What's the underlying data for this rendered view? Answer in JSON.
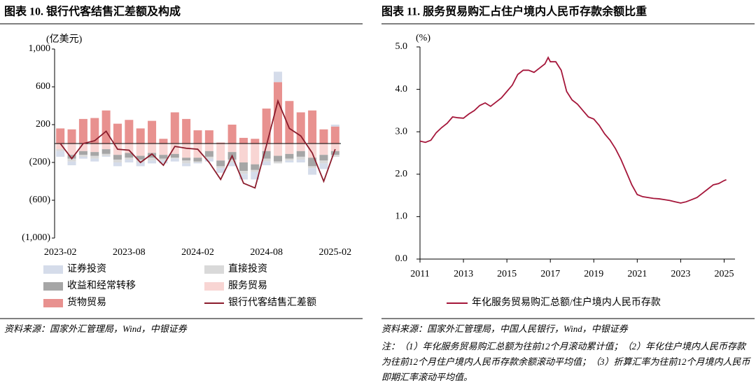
{
  "chart_data": [
    {
      "type": "bar",
      "title": "图表 10. 银行代客结售汇差额及构成",
      "y_unit": "(亿美元)",
      "source": "资料来源：国家外汇管理局，Wind，中银证券",
      "categories": [
        "2023-02",
        null,
        null,
        null,
        null,
        null,
        "2023-08",
        null,
        null,
        null,
        null,
        null,
        "2024-02",
        null,
        null,
        null,
        null,
        null,
        "2024-08",
        null,
        null,
        null,
        null,
        null,
        "2025-02"
      ],
      "ylim": [
        -1000,
        1000
      ],
      "yticks": [
        {
          "value": 1000,
          "label": "1,000"
        },
        600,
        200,
        {
          "value": -200,
          "label": "(200)"
        },
        {
          "value": -600,
          "label": "(600)"
        },
        {
          "value": -1000,
          "label": "(1,000)"
        }
      ],
      "series": [
        {
          "name": "证券投资",
          "color": "#d5dcea",
          "values": [
            -60,
            -40,
            -20,
            -30,
            -10,
            -40,
            -30,
            -40,
            -30,
            -30,
            -30,
            -30,
            -10,
            -30,
            -50,
            -40,
            -60,
            -80,
            -40,
            110,
            -20,
            -30,
            -70,
            -60,
            20
          ]
        },
        {
          "name": "直接投资",
          "color": "#d9d9d9",
          "values": [
            -20,
            -30,
            -20,
            -30,
            -20,
            -30,
            -20,
            -30,
            -30,
            -20,
            -10,
            -30,
            -10,
            -20,
            -20,
            -30,
            -30,
            -20,
            -30,
            -20,
            -20,
            -30,
            -20,
            -30,
            -20
          ]
        },
        {
          "name": "收益和经常转移",
          "color": "#a6a6a6",
          "values": [
            0,
            -40,
            -40,
            -40,
            -50,
            -50,
            -50,
            -40,
            -50,
            -40,
            -40,
            -30,
            -40,
            -60,
            -60,
            -80,
            -90,
            -60,
            -80,
            -60,
            -50,
            -60,
            -90,
            -60,
            -40
          ]
        },
        {
          "name": "服务贸易",
          "color": "#f8d5d3",
          "values": [
            -60,
            -120,
            -80,
            -90,
            -60,
            -120,
            -100,
            -130,
            -100,
            -120,
            -110,
            -150,
            -150,
            -80,
            -180,
            -90,
            -200,
            -220,
            -80,
            -130,
            -110,
            -80,
            -150,
            -120,
            -80
          ]
        },
        {
          "name": "货物贸易",
          "color": "#e8918f",
          "values": [
            160,
            150,
            260,
            270,
            350,
            210,
            250,
            160,
            240,
            50,
            330,
            260,
            140,
            140,
            10,
            200,
            60,
            50,
            370,
            650,
            450,
            330,
            350,
            150,
            180
          ]
        },
        {
          "name": "银行代客结售汇差额",
          "color": "#8b1c2c",
          "type": "line",
          "values": [
            0,
            -160,
            0,
            30,
            130,
            -60,
            -70,
            -200,
            -110,
            -230,
            -30,
            -50,
            -60,
            -200,
            -380,
            -130,
            -420,
            -470,
            -20,
            450,
            160,
            80,
            -100,
            -400,
            -60
          ]
        }
      ]
    },
    {
      "type": "line",
      "title": "图表 11. 服务贸易购汇占住户境内人民币存款余额比重",
      "y_unit": "(%)",
      "source": "资料来源：国家外汇管理局，中国人民银行，Wind，中银证券",
      "note": "注：（1）年化服务贸易购汇总额为往前12个月滚动累计值；（2）年化住户境内人民币存款为往前12个月住户境内人民币存款余额滚动平均值；（3）折算汇率为往前12个月境内人民币即期汇率滚动平均值。",
      "xlim": [
        2011,
        2025.5
      ],
      "xticks": [
        2011,
        2013,
        2015,
        2017,
        2019,
        2021,
        2023,
        2025
      ],
      "ylim": [
        0,
        5
      ],
      "yticks": [
        {
          "value": 0,
          "label": "0.0"
        },
        {
          "value": 1,
          "label": "1.0"
        },
        {
          "value": 2,
          "label": "2.0"
        },
        {
          "value": 3,
          "label": "3.0"
        },
        {
          "value": 4,
          "label": "4.0"
        },
        {
          "value": 5,
          "label": "5.0"
        }
      ],
      "series": [
        {
          "name": "年化服务贸易购汇总额/住户境内人民币存款",
          "color": "#a5163a",
          "x": [
            2011,
            2011.25,
            2011.5,
            2011.75,
            2012,
            2012.25,
            2012.5,
            2012.75,
            2013,
            2013.25,
            2013.5,
            2013.75,
            2014,
            2014.25,
            2014.5,
            2014.75,
            2015,
            2015.25,
            2015.5,
            2015.75,
            2016,
            2016.25,
            2016.5,
            2016.75,
            2016.9,
            2017,
            2017.25,
            2017.5,
            2017.75,
            2018,
            2018.25,
            2018.5,
            2018.75,
            2019,
            2019.25,
            2019.5,
            2019.75,
            2020,
            2020.25,
            2020.5,
            2020.75,
            2021,
            2021.25,
            2021.5,
            2021.75,
            2022,
            2022.25,
            2022.5,
            2022.75,
            2023,
            2023.25,
            2023.5,
            2023.75,
            2024,
            2024.25,
            2024.5,
            2024.75,
            2025,
            2025.1
          ],
          "values": [
            2.78,
            2.75,
            2.8,
            2.98,
            3.1,
            3.2,
            3.35,
            3.33,
            3.32,
            3.42,
            3.5,
            3.62,
            3.68,
            3.6,
            3.7,
            3.8,
            3.95,
            4.1,
            4.35,
            4.45,
            4.45,
            4.4,
            4.5,
            4.6,
            4.75,
            4.65,
            4.65,
            4.45,
            3.95,
            3.75,
            3.65,
            3.5,
            3.35,
            3.3,
            3.15,
            2.95,
            2.8,
            2.6,
            2.35,
            2.05,
            1.75,
            1.52,
            1.47,
            1.45,
            1.43,
            1.42,
            1.4,
            1.38,
            1.35,
            1.32,
            1.35,
            1.4,
            1.45,
            1.55,
            1.65,
            1.75,
            1.78,
            1.85,
            1.87
          ]
        }
      ]
    }
  ]
}
